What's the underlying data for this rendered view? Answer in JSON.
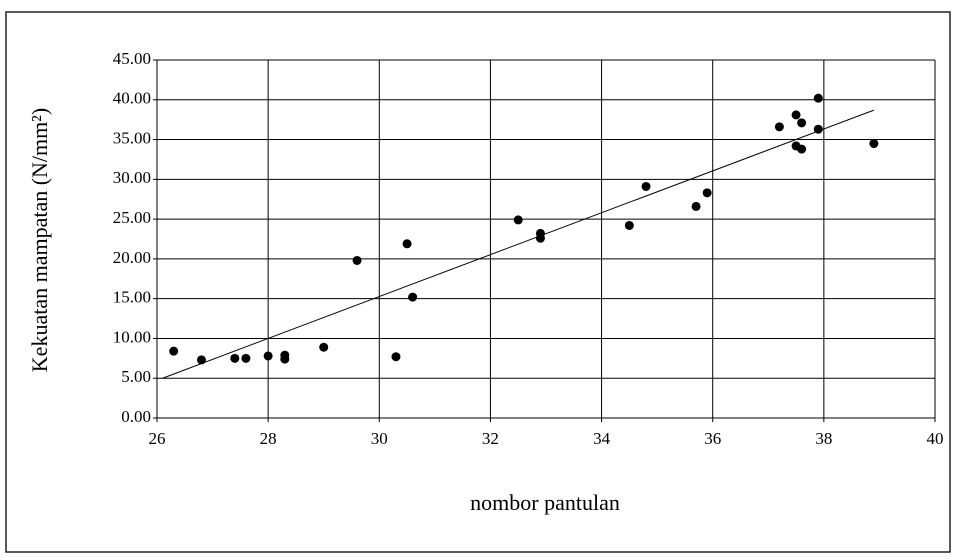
{
  "chart_data": {
    "type": "scatter",
    "x_label": "nombor pantulan",
    "y_label": "Kekuatan mampatan (N/mm²)",
    "x": [
      26.3,
      26.8,
      27.4,
      27.6,
      28.0,
      28.3,
      28.3,
      29.0,
      29.6,
      30.3,
      30.5,
      30.6,
      32.5,
      32.9,
      32.9,
      34.5,
      34.8,
      35.7,
      35.9,
      37.2,
      37.5,
      37.5,
      37.6,
      37.6,
      37.9,
      37.9,
      38.9
    ],
    "values": [
      8.4,
      7.3,
      7.5,
      7.5,
      7.8,
      7.9,
      7.4,
      8.9,
      19.8,
      7.7,
      21.9,
      15.2,
      24.9,
      23.2,
      22.6,
      24.2,
      29.1,
      26.6,
      28.3,
      36.6,
      38.1,
      34.2,
      37.1,
      33.8,
      40.2,
      36.3,
      34.5
    ],
    "color": "#000000",
    "trendline": {
      "x": [
        26.1,
        38.9
      ],
      "y": [
        5.0,
        38.7
      ]
    },
    "xlim": [
      26,
      40
    ],
    "xticks": [
      26,
      28,
      30,
      32,
      34,
      36,
      38,
      40
    ],
    "ylim": [
      0,
      45
    ],
    "yticks": [
      {
        "value": 0,
        "label": "0.00"
      },
      {
        "value": 5,
        "label": "5.00"
      },
      {
        "value": 10,
        "label": "10.00"
      },
      {
        "value": 15,
        "label": "15.00"
      },
      {
        "value": 20,
        "label": "20.00"
      },
      {
        "value": 25,
        "label": "25.00"
      },
      {
        "value": 30,
        "label": "30.00"
      },
      {
        "value": 35,
        "label": "35.00"
      },
      {
        "value": 40,
        "label": "40.00"
      },
      {
        "value": 45,
        "label": "45.00"
      }
    ],
    "grid": true
  }
}
